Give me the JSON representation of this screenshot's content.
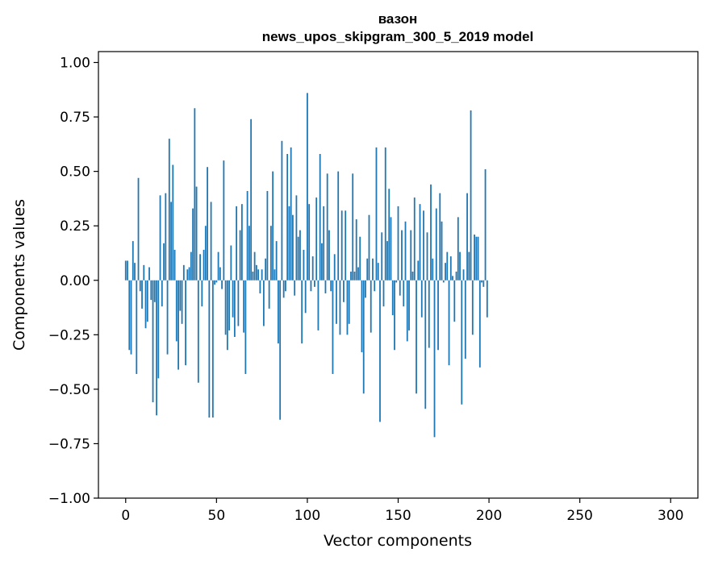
{
  "chart_data": {
    "type": "bar",
    "title": "вазон",
    "subtitle": "news_upos_skipgram_300_5_2019 model",
    "xlabel": "Vector components",
    "ylabel": "Components values",
    "xlim": [
      -15,
      315
    ],
    "ylim": [
      -1.0,
      1.05
    ],
    "x_ticks": [
      0,
      50,
      100,
      150,
      200,
      250,
      300
    ],
    "x_tick_labels": [
      "0",
      "50",
      "100",
      "150",
      "200",
      "250",
      "300"
    ],
    "y_ticks": [
      1.0,
      0.75,
      0.5,
      0.25,
      0.0,
      -0.25,
      -0.5,
      -0.75,
      -1.0
    ],
    "y_tick_labels": [
      "1.00",
      "0.75",
      "0.50",
      "0.25",
      "0.00",
      "−0.25",
      "−0.50",
      "−0.75",
      "−1.00"
    ],
    "color": "#1f77b4",
    "values": [
      0.09,
      0.09,
      -0.32,
      -0.34,
      0.18,
      0.08,
      -0.43,
      0.47,
      -0.05,
      -0.13,
      0.07,
      -0.22,
      -0.19,
      0.06,
      -0.09,
      -0.56,
      -0.1,
      -0.62,
      -0.45,
      0.39,
      -0.12,
      0.17,
      0.4,
      -0.34,
      0.65,
      0.36,
      0.53,
      0.14,
      -0.28,
      -0.41,
      -0.14,
      -0.2,
      0.07,
      -0.39,
      0.05,
      0.06,
      0.13,
      0.33,
      0.79,
      0.43,
      -0.47,
      0.12,
      -0.12,
      0.14,
      0.25,
      0.52,
      -0.63,
      0.36,
      -0.63,
      -0.02,
      -0.01,
      0.13,
      0.06,
      -0.04,
      0.55,
      -0.25,
      -0.32,
      -0.23,
      0.16,
      -0.17,
      -0.26,
      0.34,
      -0.21,
      0.23,
      0.35,
      -0.24,
      -0.43,
      0.41,
      0.25,
      0.74,
      0.04,
      0.13,
      0.07,
      0.05,
      -0.06,
      0.05,
      -0.21,
      0.1,
      0.41,
      -0.13,
      0.25,
      0.5,
      0.05,
      0.18,
      -0.29,
      -0.64,
      0.64,
      -0.08,
      -0.05,
      0.58,
      0.34,
      0.61,
      0.3,
      -0.07,
      0.39,
      0.2,
      0.23,
      -0.29,
      0.14,
      -0.15,
      0.86,
      0.35,
      -0.05,
      0.11,
      -0.03,
      0.38,
      -0.23,
      0.58,
      0.17,
      0.34,
      -0.06,
      0.49,
      0.23,
      -0.05,
      -0.43,
      0.12,
      -0.2,
      0.5,
      -0.25,
      0.32,
      -0.1,
      0.32,
      -0.25,
      -0.2,
      0.04,
      0.49,
      0.04,
      0.28,
      0.06,
      0.2,
      -0.33,
      -0.52,
      -0.08,
      0.1,
      0.3,
      -0.24,
      0.1,
      -0.05,
      0.61,
      0.08,
      -0.65,
      0.22,
      -0.12,
      0.61,
      0.18,
      0.42,
      0.29,
      -0.16,
      -0.32,
      -0.01,
      0.34,
      -0.07,
      0.23,
      -0.12,
      0.27,
      -0.28,
      -0.23,
      0.23,
      0.04,
      0.38,
      -0.52,
      0.09,
      0.35,
      -0.17,
      0.32,
      -0.59,
      0.22,
      -0.31,
      0.44,
      0.1,
      -0.72,
      0.33,
      -0.32,
      0.4,
      0.27,
      -0.01,
      0.08,
      0.13,
      -0.39,
      0.11,
      0.02,
      -0.19,
      0.04,
      0.29,
      0.13,
      -0.57,
      0.05,
      -0.36,
      0.4,
      0.13,
      0.78,
      -0.25,
      0.21,
      0.2,
      0.2,
      -0.4,
      -0.01,
      -0.03,
      0.51,
      -0.17
    ]
  }
}
